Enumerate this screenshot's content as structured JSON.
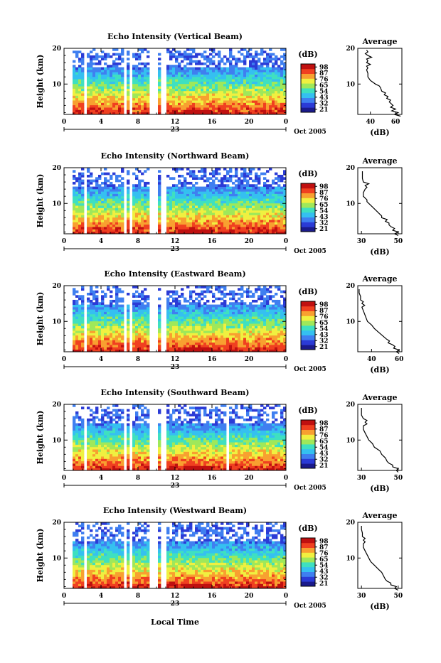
{
  "chart_data": {
    "type": "heatmap",
    "panels": [
      {
        "title": "Echo Intensity (Vertical Beam)",
        "avg_ticks_x": [
          "40",
          "60"
        ],
        "avg_xlim": [
          30,
          65
        ],
        "avg_profile": [
          [
            1,
            64
          ],
          [
            1.5,
            59
          ],
          [
            2,
            62
          ],
          [
            2.5,
            57
          ],
          [
            3,
            60
          ],
          [
            3.5,
            56
          ],
          [
            4,
            58
          ],
          [
            5,
            55
          ],
          [
            5.5,
            56
          ],
          [
            6,
            53
          ],
          [
            6.5,
            54
          ],
          [
            7,
            51
          ],
          [
            7.5,
            52
          ],
          [
            8,
            49
          ],
          [
            9,
            48
          ],
          [
            9.5,
            47
          ],
          [
            10,
            44
          ],
          [
            10.5,
            42
          ],
          [
            11,
            40
          ],
          [
            12,
            38
          ],
          [
            13,
            38
          ],
          [
            14,
            37
          ],
          [
            14.5,
            38
          ],
          [
            15,
            37
          ],
          [
            15.5,
            40
          ],
          [
            16,
            37
          ],
          [
            16.5,
            38
          ],
          [
            17,
            37
          ],
          [
            17.5,
            41
          ],
          [
            18,
            38
          ],
          [
            18.5,
            36
          ],
          [
            19,
            38
          ],
          [
            19.5,
            37
          ]
        ],
        "date_label": "23",
        "dead_bands": [
          [
            0,
            1
          ],
          [
            2.2,
            2.5
          ],
          [
            6.6,
            6.85
          ],
          [
            7.2,
            7.45
          ],
          [
            9.1,
            10.1
          ],
          [
            10.6,
            11.0
          ]
        ]
      },
      {
        "title": "Echo Intensity (Northward Beam)",
        "avg_ticks_x": [
          "30",
          "50"
        ],
        "avg_xlim": [
          28,
          52
        ],
        "avg_profile": [
          [
            1,
            50
          ],
          [
            1.5,
            48
          ],
          [
            2,
            50
          ],
          [
            2.5,
            47
          ],
          [
            3,
            48
          ],
          [
            3.5,
            46
          ],
          [
            4,
            45
          ],
          [
            4.5,
            45
          ],
          [
            5,
            43
          ],
          [
            5.5,
            44
          ],
          [
            6,
            41
          ],
          [
            6.5,
            41
          ],
          [
            7,
            40
          ],
          [
            8,
            38
          ],
          [
            9,
            36
          ],
          [
            10,
            34
          ],
          [
            10.5,
            33
          ],
          [
            11,
            33
          ],
          [
            12,
            31
          ],
          [
            13,
            31
          ],
          [
            14,
            32
          ],
          [
            14.5,
            33
          ],
          [
            15,
            32
          ],
          [
            15.5,
            34
          ],
          [
            16,
            31
          ],
          [
            17,
            30.5
          ],
          [
            18,
            30.5
          ],
          [
            19,
            30.5
          ]
        ],
        "date_label": "23",
        "dead_bands": [
          [
            0,
            1
          ],
          [
            2.2,
            2.5
          ],
          [
            6.6,
            6.85
          ],
          [
            7.2,
            7.45
          ],
          [
            9.1,
            10.1
          ],
          [
            10.6,
            11.0
          ]
        ]
      },
      {
        "title": "Echo Intensity (Eastward Beam)",
        "avg_ticks_x": [
          "40",
          "60"
        ],
        "avg_xlim": [
          30,
          62
        ],
        "avg_profile": [
          [
            1,
            60
          ],
          [
            1.5,
            58
          ],
          [
            2,
            60
          ],
          [
            2.5,
            56
          ],
          [
            3,
            57
          ],
          [
            3.5,
            55
          ],
          [
            4,
            52
          ],
          [
            4.5,
            53
          ],
          [
            5,
            51
          ],
          [
            6,
            48
          ],
          [
            7,
            45
          ],
          [
            8,
            42
          ],
          [
            9,
            40
          ],
          [
            10,
            37
          ],
          [
            11,
            36
          ],
          [
            12,
            35
          ],
          [
            13,
            34
          ],
          [
            14,
            33
          ],
          [
            14.5,
            35
          ],
          [
            15,
            33
          ],
          [
            15.5,
            34
          ],
          [
            16,
            32
          ],
          [
            17,
            32
          ],
          [
            18,
            31
          ],
          [
            19,
            31
          ]
        ],
        "date_label": "23",
        "dead_bands": [
          [
            0,
            1
          ],
          [
            2.2,
            2.5
          ],
          [
            6.6,
            6.85
          ],
          [
            7.2,
            7.45
          ],
          [
            9.1,
            10.1
          ],
          [
            10.6,
            11.0
          ]
        ]
      },
      {
        "title": "Echo Intensity (Southward Beam)",
        "avg_ticks_x": [
          "30",
          "50"
        ],
        "avg_xlim": [
          28,
          52
        ],
        "avg_profile": [
          [
            1,
            50
          ],
          [
            1.5,
            49
          ],
          [
            2,
            50
          ],
          [
            2.5,
            47
          ],
          [
            3,
            47
          ],
          [
            3.5,
            45
          ],
          [
            4,
            44
          ],
          [
            5,
            43
          ],
          [
            6,
            41
          ],
          [
            7,
            40
          ],
          [
            8,
            37
          ],
          [
            9,
            36
          ],
          [
            10,
            34
          ],
          [
            11,
            33
          ],
          [
            12,
            32
          ],
          [
            13,
            31
          ],
          [
            14,
            31
          ],
          [
            14.5,
            33
          ],
          [
            15,
            32
          ],
          [
            15.5,
            33
          ],
          [
            16,
            31
          ],
          [
            17,
            30
          ],
          [
            18,
            30
          ],
          [
            19,
            30
          ]
        ],
        "date_label": "23",
        "dead_bands": [
          [
            0,
            1
          ],
          [
            2.2,
            2.5
          ],
          [
            6.6,
            6.85
          ],
          [
            7.2,
            7.45
          ],
          [
            9.1,
            10.1
          ],
          [
            10.6,
            11.0
          ],
          [
            17.6,
            17.9
          ]
        ]
      },
      {
        "title": "Echo Intensity (Westward Beam)",
        "avg_ticks_x": [
          "30",
          "50"
        ],
        "avg_xlim": [
          28,
          52
        ],
        "avg_profile": [
          [
            1,
            50
          ],
          [
            1.5,
            48
          ],
          [
            2,
            49
          ],
          [
            2.5,
            46
          ],
          [
            3,
            46
          ],
          [
            3.5,
            44
          ],
          [
            4,
            43
          ],
          [
            5,
            42
          ],
          [
            6,
            41
          ],
          [
            7,
            39
          ],
          [
            8,
            37
          ],
          [
            9,
            35
          ],
          [
            10,
            34
          ],
          [
            11,
            33
          ],
          [
            12,
            32
          ],
          [
            13,
            31
          ],
          [
            14,
            31
          ],
          [
            14.5,
            32
          ],
          [
            15,
            31
          ],
          [
            15.5,
            32
          ],
          [
            16,
            30.5
          ],
          [
            17,
            30.5
          ],
          [
            18,
            30
          ],
          [
            19,
            30
          ]
        ],
        "date_label": "23",
        "dead_bands": [
          [
            0,
            1
          ],
          [
            2.2,
            2.5
          ],
          [
            6.6,
            6.85
          ],
          [
            7.2,
            7.45
          ],
          [
            9.1,
            10.1
          ],
          [
            10.6,
            11.0
          ]
        ]
      }
    ],
    "xlabel": "Local Time",
    "ylabel": "Height (km)",
    "x_ticks": [
      "0",
      "4",
      "8",
      "12",
      "16",
      "20",
      "0"
    ],
    "x_range": [
      0,
      24
    ],
    "y_ticks": [
      "10",
      "20"
    ],
    "ylim": [
      1.5,
      20
    ],
    "month_label": "Oct 2005",
    "colorbar_unit": "(dB)",
    "colorbar_ticks": [
      "21",
      "32",
      "43",
      "54",
      "65",
      "76",
      "87",
      "98"
    ],
    "avg_title": "Average",
    "avg_xlabel": "(dB)",
    "colors": {
      "colormap": [
        "#1a1a8c",
        "#2b3bd6",
        "#3f7ff0",
        "#35c0f0",
        "#3fe0c0",
        "#9fe85a",
        "#f0f040",
        "#f8a030",
        "#f04020",
        "#c01010"
      ]
    }
  }
}
